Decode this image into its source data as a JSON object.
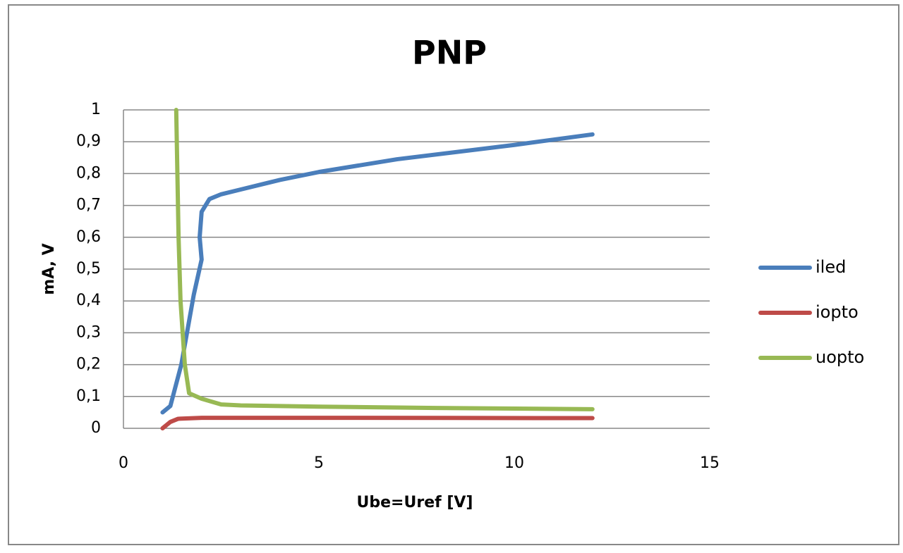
{
  "chart_data": {
    "type": "line",
    "title": "PNP",
    "x_label": "Ube=Uref  [V]",
    "y_label": "mA, V",
    "xlim": [
      0,
      15
    ],
    "xticks": [
      0,
      5,
      10,
      15
    ],
    "ylim": [
      0,
      1
    ],
    "yticks": [
      0,
      {
        "value": 0.1,
        "label": "0,1"
      },
      {
        "value": 0.2,
        "label": "0,2"
      },
      {
        "value": 0.3,
        "label": "0,3"
      },
      {
        "value": 0.4,
        "label": "0,4"
      },
      {
        "value": 0.5,
        "label": "0,5"
      },
      {
        "value": 0.6,
        "label": "0,6"
      },
      {
        "value": 0.7,
        "label": "0,7"
      },
      {
        "value": 0.8,
        "label": "0,8"
      },
      {
        "value": 0.9,
        "label": "0,9"
      },
      1
    ],
    "grid": true,
    "legend": "right",
    "series": [
      {
        "name": "iled",
        "color": "#4a7ebb",
        "x": [
          1.0,
          1.2,
          1.48,
          1.8,
          2.0,
          1.95,
          2.0,
          2.2,
          2.5,
          3,
          4,
          5,
          7,
          10,
          12
        ],
        "values": [
          0.05,
          0.07,
          0.2,
          0.42,
          0.53,
          0.6,
          0.68,
          0.72,
          0.735,
          0.75,
          0.78,
          0.805,
          0.845,
          0.89,
          0.923
        ]
      },
      {
        "name": "iopto",
        "color": "#be4b48",
        "x": [
          1.0,
          1.2,
          1.4,
          2,
          5,
          12
        ],
        "values": [
          0.0,
          0.02,
          0.03,
          0.033,
          0.033,
          0.032
        ]
      },
      {
        "name": "uopto",
        "color": "#98b954",
        "x": [
          1.35,
          1.38,
          1.41,
          1.46,
          1.57,
          1.68,
          2.0,
          2.5,
          3,
          5,
          8,
          12
        ],
        "values": [
          1.0,
          0.8,
          0.6,
          0.4,
          0.2,
          0.11,
          0.093,
          0.075,
          0.072,
          0.068,
          0.064,
          0.06
        ]
      }
    ]
  }
}
